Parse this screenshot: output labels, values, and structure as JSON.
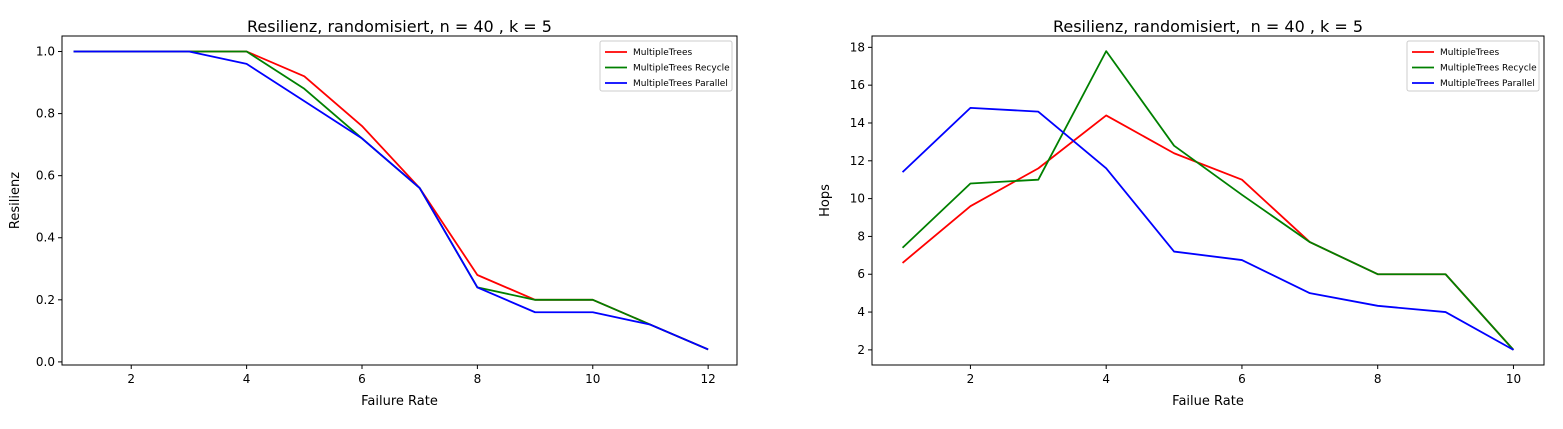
{
  "chart_data": [
    {
      "type": "line",
      "title": "Resilienz, randomisiert, n = 40 , k = 5",
      "xlabel": "Failure Rate",
      "ylabel": "Resilienz",
      "xlim": [
        0.8,
        12.5
      ],
      "ylim": [
        -0.01,
        1.05
      ],
      "xticks": [
        2,
        4,
        6,
        8,
        10,
        12
      ],
      "yticks": [
        0.0,
        0.2,
        0.4,
        0.6,
        0.8,
        1.0
      ],
      "ytick_labels": [
        "0.0",
        "0.2",
        "0.4",
        "0.6",
        "0.8",
        "1.0"
      ],
      "grid": false,
      "legend_position": "top-right",
      "x": [
        1,
        2,
        3,
        4,
        5,
        6,
        7,
        8,
        9,
        10,
        11,
        12
      ],
      "series": [
        {
          "name": "MultipleTrees",
          "color": "#ff0000",
          "values": [
            1.0,
            1.0,
            1.0,
            1.0,
            0.92,
            0.76,
            0.56,
            0.28,
            0.2,
            0.2,
            0.12,
            0.04
          ]
        },
        {
          "name": "MultipleTrees Recycle",
          "color": "#008000",
          "values": [
            1.0,
            1.0,
            1.0,
            1.0,
            0.88,
            0.72,
            0.56,
            0.24,
            0.2,
            0.2,
            0.12,
            0.04
          ]
        },
        {
          "name": "MultipleTrees Parallel",
          "color": "#0000ff",
          "values": [
            1.0,
            1.0,
            1.0,
            0.96,
            0.84,
            0.72,
            0.56,
            0.24,
            0.16,
            0.16,
            0.12,
            0.04
          ]
        }
      ]
    },
    {
      "type": "line",
      "title": "Resilienz, randomisiert,  n = 40 , k = 5",
      "xlabel": "Failue Rate",
      "ylabel": "Hops",
      "xlim": [
        0.55,
        10.45
      ],
      "ylim": [
        1.2,
        18.6
      ],
      "xticks": [
        2,
        4,
        6,
        8,
        10
      ],
      "yticks": [
        2,
        4,
        6,
        8,
        10,
        12,
        14,
        16,
        18
      ],
      "ytick_labels": [
        "2",
        "4",
        "6",
        "8",
        "10",
        "12",
        "14",
        "16",
        "18"
      ],
      "grid": false,
      "legend_position": "top-right",
      "x": [
        1,
        2,
        3,
        4,
        5,
        6,
        7,
        8,
        9,
        10
      ],
      "series": [
        {
          "name": "MultipleTrees",
          "color": "#ff0000",
          "values": [
            6.6,
            9.6,
            11.6,
            14.4,
            12.4,
            11.0,
            7.7,
            6.0,
            6.0,
            2.0
          ]
        },
        {
          "name": "MultipleTrees Recycle",
          "color": "#008000",
          "values": [
            7.4,
            10.8,
            11.0,
            17.8,
            12.8,
            10.2,
            7.7,
            6.0,
            6.0,
            2.0
          ]
        },
        {
          "name": "MultipleTrees Parallel",
          "color": "#0000ff",
          "values": [
            11.4,
            14.8,
            14.6,
            11.6,
            7.2,
            6.75,
            5.0,
            4.33,
            4.0,
            2.0
          ]
        }
      ]
    }
  ]
}
